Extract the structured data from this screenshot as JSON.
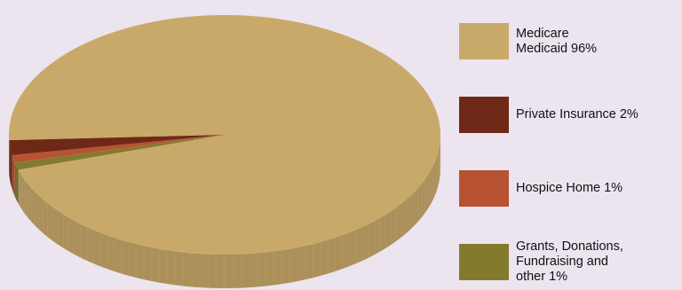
{
  "chart_data": {
    "type": "pie",
    "title": "",
    "legend_position": "right",
    "slices": [
      {
        "label": "Medicare\nMedicaid 96%",
        "value": 96,
        "color": "#C9A96A"
      },
      {
        "label": "Private Insurance 2%",
        "value": 2,
        "color": "#6E2916"
      },
      {
        "label": "Hospice Home 1%",
        "value": 1,
        "color": "#B75233"
      },
      {
        "label": "Grants, Donations,\nFundraising and\nother 1%",
        "value": 1,
        "color": "#847A2D"
      }
    ]
  }
}
